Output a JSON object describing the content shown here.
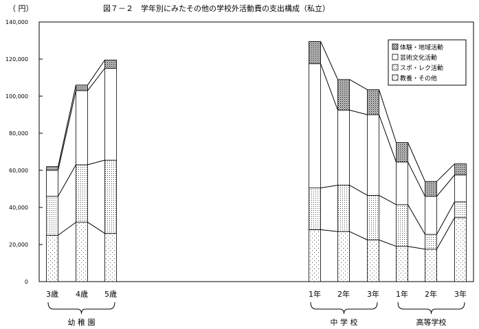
{
  "chart_data": {
    "type": "bar",
    "title": "図７－２　学年別にみたその他の学校外活動費の支出構成（私立）",
    "ylabel": "（ 円）",
    "ylim": [
      0,
      140000
    ],
    "yticks": [
      0,
      20000,
      40000,
      60000,
      80000,
      100000,
      120000,
      140000
    ],
    "ytick_labels": [
      "0",
      "20,000",
      "40,000",
      "60,000",
      "80,000",
      "100,000",
      "120,000",
      "140,000"
    ],
    "stacked": true,
    "grid": false,
    "legend_position": "top-right",
    "categories": [
      "3歳",
      "4歳",
      "5歳",
      "1年",
      "2年",
      "3年",
      "1年",
      "2年",
      "3年"
    ],
    "groups": [
      {
        "label": "幼 稚 園",
        "categories": [
          "3歳",
          "4歳",
          "5歳"
        ]
      },
      {
        "label": "中 学 校",
        "categories": [
          "1年",
          "2年",
          "3年"
        ]
      },
      {
        "label": "高等学校",
        "categories": [
          "1年",
          "2年",
          "3年"
        ]
      }
    ],
    "series": [
      {
        "name": "教養・その他",
        "pattern": "sparse-dots",
        "values": [
          25000,
          32000,
          26000,
          28000,
          27000,
          22500,
          19000,
          17500,
          34500
        ]
      },
      {
        "name": "スポ・レク活動",
        "pattern": "dense-dots",
        "values": [
          21000,
          31000,
          39500,
          22500,
          25000,
          24000,
          22500,
          8000,
          8500
        ]
      },
      {
        "name": "芸術文化活動",
        "pattern": "blank",
        "values": [
          14000,
          40000,
          49500,
          67000,
          40500,
          43500,
          23000,
          20500,
          14500
        ]
      },
      {
        "name": "体験・地域活動",
        "pattern": "heavy-dots",
        "values": [
          2000,
          3000,
          4500,
          12000,
          16500,
          13500,
          10500,
          8000,
          6000
        ]
      }
    ]
  }
}
